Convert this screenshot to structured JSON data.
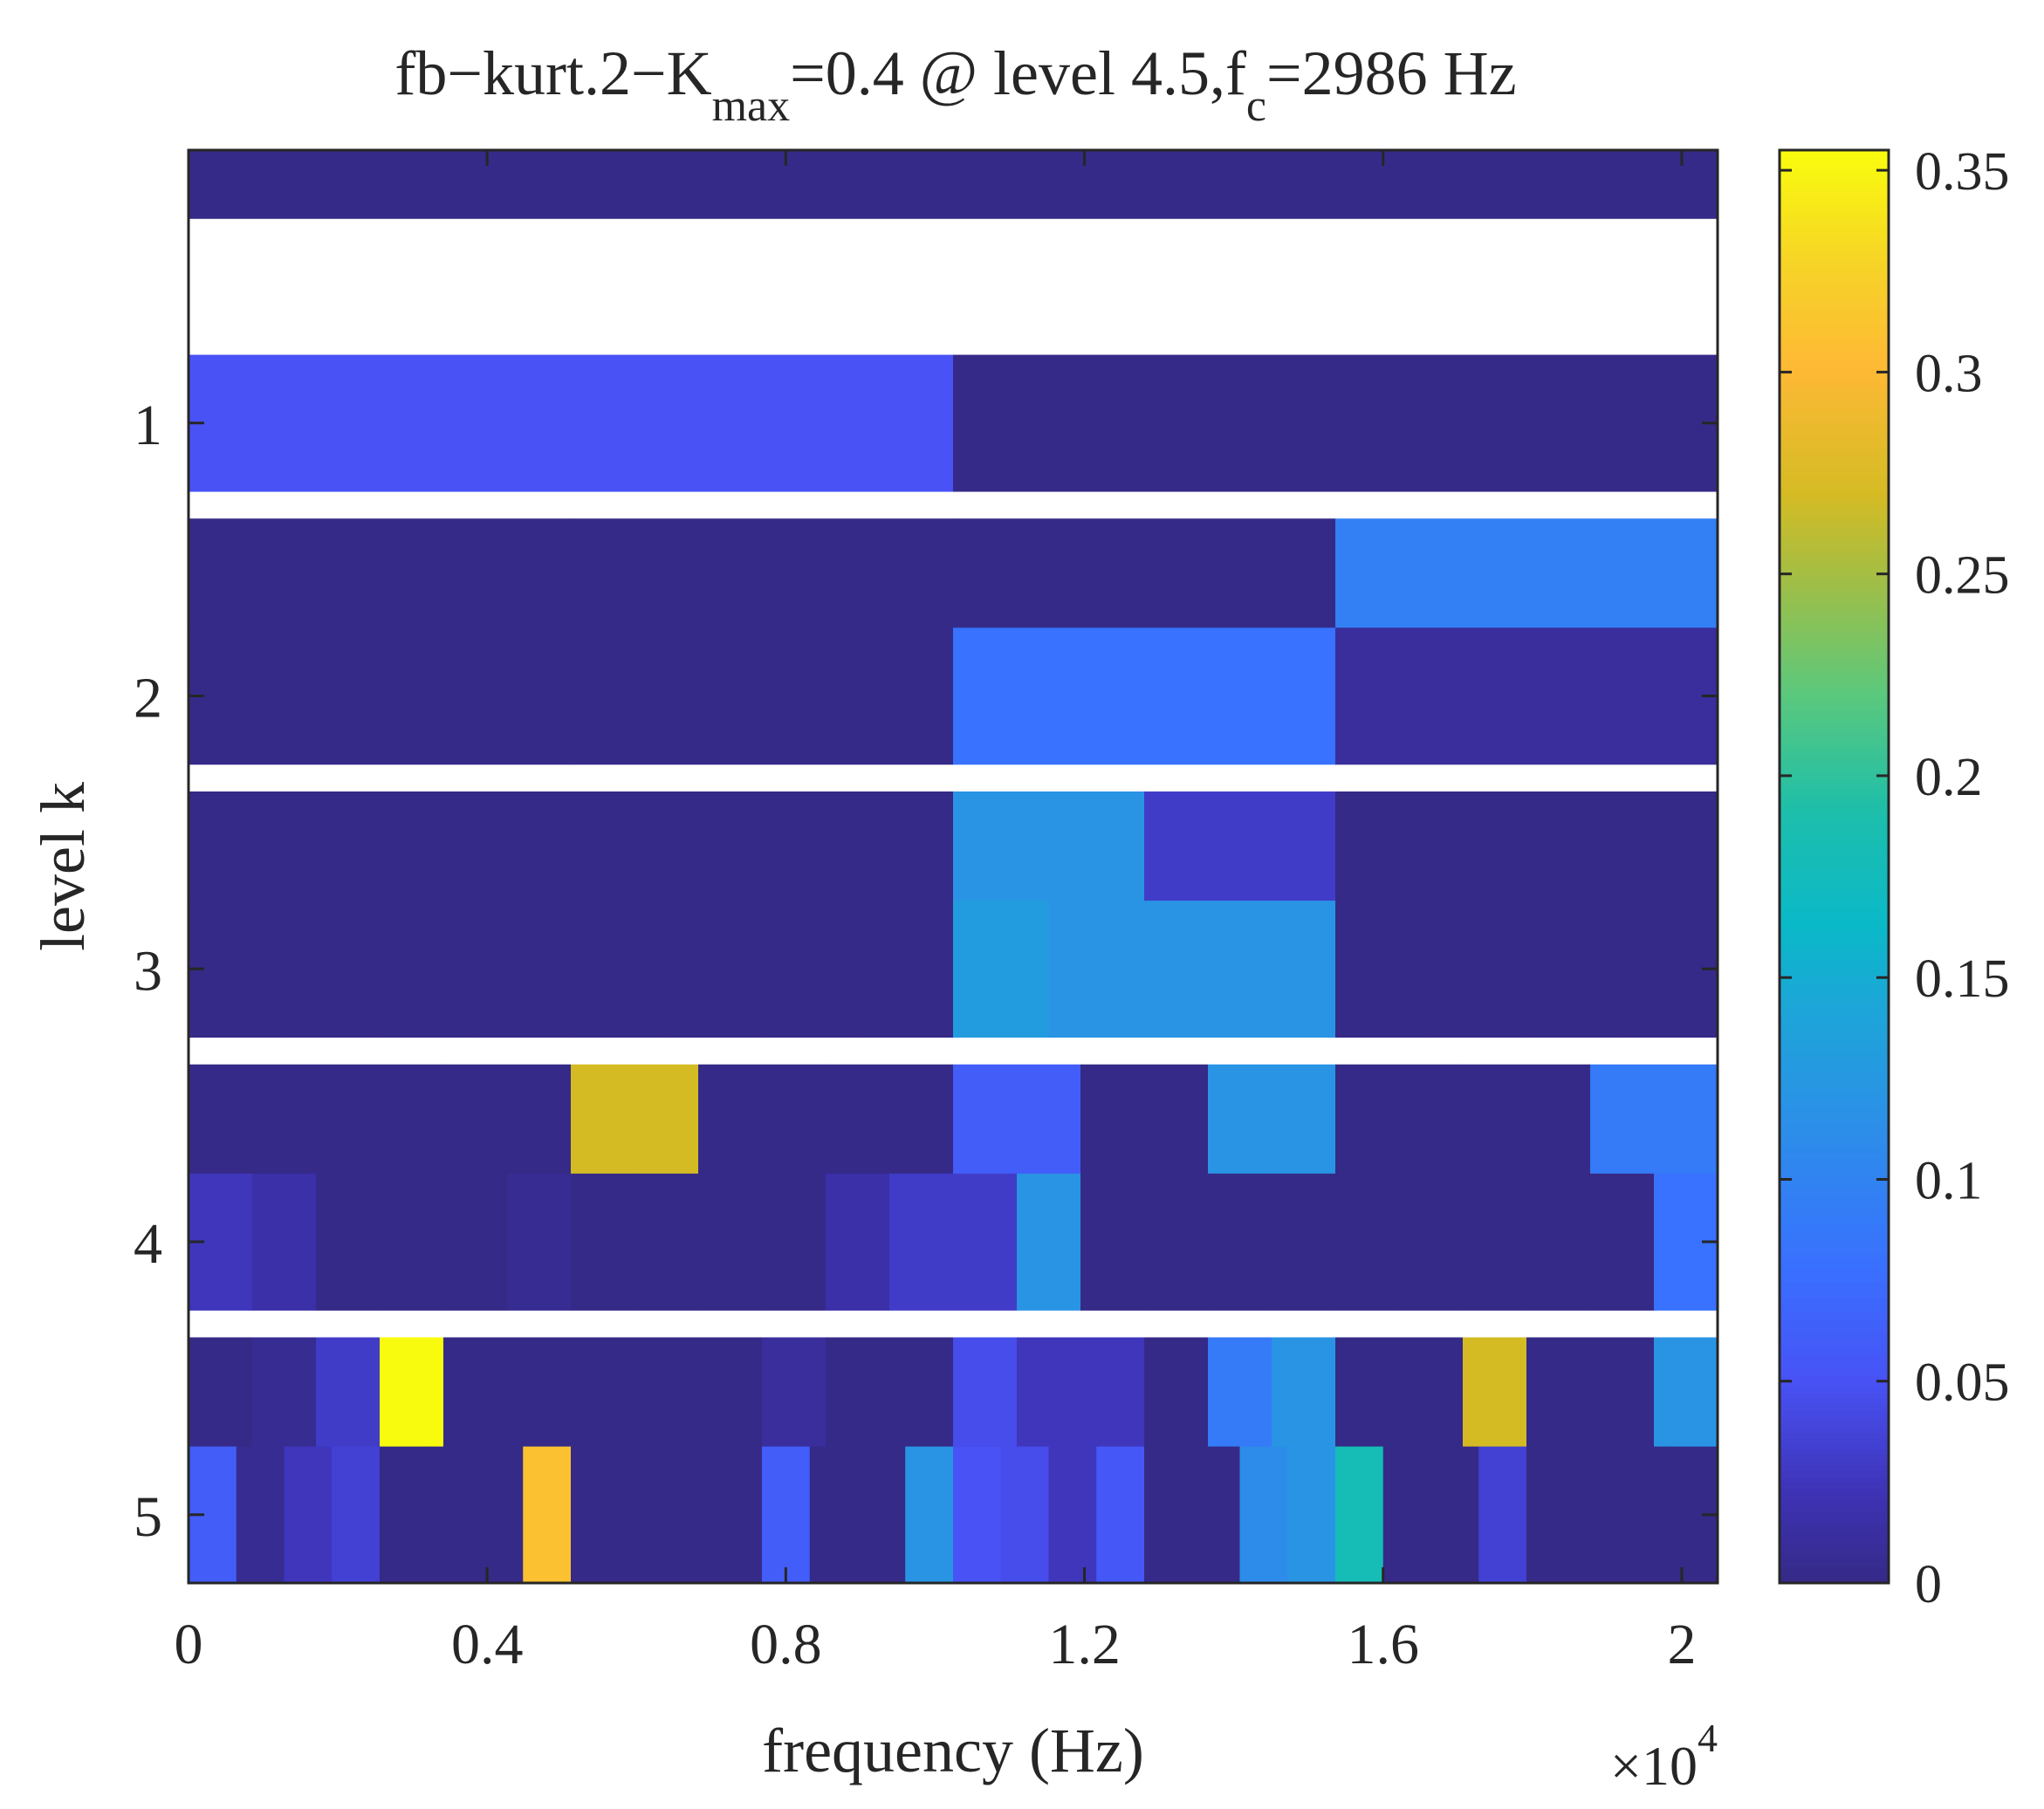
{
  "chart_data": {
    "type": "heatmap",
    "title": {
      "prefix": "fb−kurt.2−K",
      "sub1": "max",
      "middle": "=0.4 @ level 4.5,f",
      "sub2": "c",
      "suffix": "=2986 Hz"
    },
    "xlabel": "frequency (Hz)",
    "ylabel": "level k",
    "x_exponent_base": "×10",
    "x_exponent_power": "4",
    "xlim": [
      0,
      2.048
    ],
    "ylim": [
      0,
      5.25
    ],
    "x_ticks": [
      0,
      0.4,
      0.8,
      1.2,
      1.6,
      2.0
    ],
    "x_tick_labels": [
      "0",
      "0.4",
      "0.8",
      "1.2",
      "1.6",
      "2"
    ],
    "y_ticks": [
      1,
      2,
      3,
      4,
      5
    ],
    "y_tick_labels": [
      "1",
      "2",
      "3",
      "4",
      "5"
    ],
    "colorbar": {
      "min": 0,
      "max": 0.355,
      "ticks": [
        0,
        0.05,
        0.1,
        0.15,
        0.2,
        0.25,
        0.3,
        0.35
      ],
      "tick_labels": [
        "0",
        "0.05",
        "0.1",
        "0.15",
        "0.2",
        "0.25",
        "0.3",
        "0.35"
      ],
      "colormap": "parula"
    },
    "rows": [
      {
        "level": 0,
        "values": [
          0.0
        ]
      },
      {
        "level": 1,
        "values": [
          0.05,
          0.0
        ]
      },
      {
        "level": 1.6,
        "values": [
          0.0,
          0.0,
          0.0,
          0.095
        ]
      },
      {
        "level": 2,
        "values": [
          0.0,
          0.0,
          0.08,
          0.01
        ]
      },
      {
        "level": 2.6,
        "values": [
          0.0,
          0.0,
          0.0,
          0.0,
          0.12,
          0.03,
          0.0,
          0.0
        ]
      },
      {
        "level": 3,
        "values": [
          0.0,
          0.0,
          0.0,
          0.0,
          0.0,
          0.0,
          0.0,
          0.0,
          0.13,
          0.12,
          0.12,
          0.12,
          0.0,
          0.0,
          0.0,
          0.0
        ]
      },
      {
        "level": 3.6,
        "values": [
          0.0,
          0.0,
          0.0,
          0.27,
          0.0,
          0.0,
          0.06,
          0.0,
          0.12,
          0.0,
          0.0,
          0.09
        ]
      },
      {
        "level": 4,
        "values": [
          0.025,
          0.015,
          0.0,
          0.0,
          0.0,
          0.005,
          0.0,
          0.0,
          0.0,
          0.0,
          0.015,
          0.03,
          0.03,
          0.12,
          0.0,
          0.0,
          0.0,
          0.0,
          0.0,
          0.0,
          0.0,
          0.0,
          0.0,
          0.08
        ]
      },
      {
        "level": 4.6,
        "values": [
          0.0,
          0.005,
          0.03,
          0.355,
          0.0,
          0.0,
          0.0,
          0.0,
          0.0,
          0.01,
          0.0,
          0.0,
          0.045,
          0.025,
          0.025,
          0.0,
          0.09,
          0.12,
          0.0,
          0.0,
          0.27,
          0.0,
          0.0,
          0.12
        ]
      },
      {
        "level": 5,
        "values": [
          0.06,
          0.005,
          0.025,
          0.035,
          0.0,
          0.0,
          0.0,
          0.31,
          0.0,
          0.0,
          0.0,
          0.0,
          0.06,
          0.0,
          0.0,
          0.12,
          0.05,
          0.045,
          0.025,
          0.055,
          0.0,
          0.0,
          0.11,
          0.12,
          0.18,
          0.0,
          0.0,
          0.035,
          0.0,
          0.0,
          0.0,
          0.0
        ]
      }
    ]
  }
}
